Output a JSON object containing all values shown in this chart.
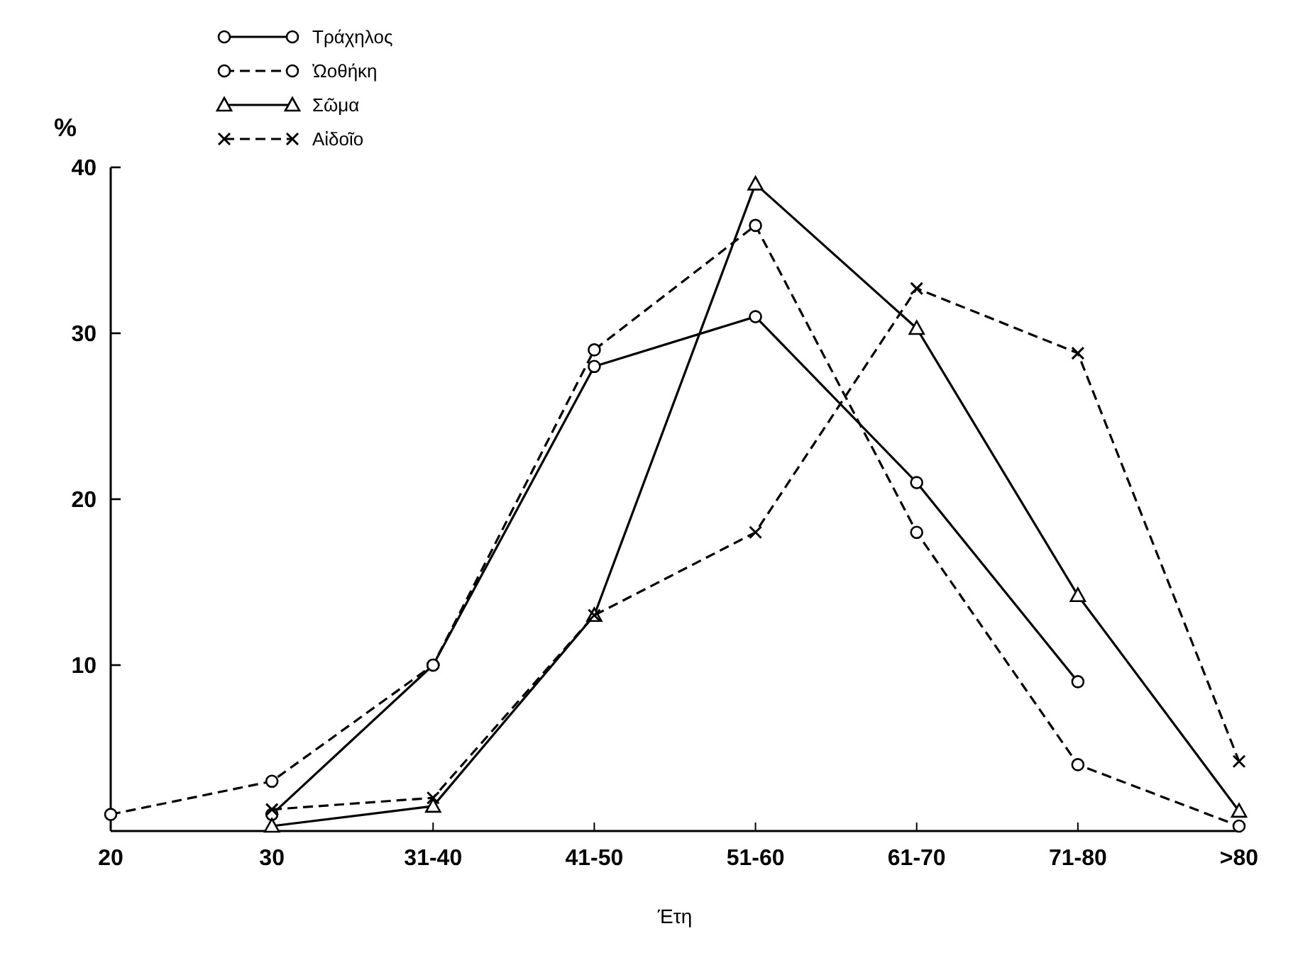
{
  "chart_data": {
    "type": "line",
    "ylabel": "%",
    "xlabel": "Έτη",
    "categories": [
      "20",
      "30",
      "31-40",
      "41-50",
      "51-60",
      "61-70",
      "71-80",
      ">80"
    ],
    "ylim": [
      0,
      40
    ],
    "yticks": [
      10,
      20,
      30,
      40
    ],
    "grid": false,
    "legend": "top left",
    "series": [
      {
        "name": "Τράχηλος",
        "color": "#000000",
        "marker": "circle",
        "line_style": "solid",
        "values": [
          null,
          1,
          10,
          28,
          31,
          21,
          9,
          null
        ]
      },
      {
        "name": "Ὠοθήκη",
        "color": "#000000",
        "marker": "circle",
        "line_style": "dashed",
        "values": [
          1,
          3,
          10,
          29,
          36.5,
          18,
          4,
          0.3
        ]
      },
      {
        "name": "Σῶμα",
        "color": "#000000",
        "marker": "triangle",
        "line_style": "solid",
        "values": [
          null,
          0.3,
          1.5,
          13,
          39,
          30.3,
          14.2,
          1.2
        ]
      },
      {
        "name": "Αἰδοῖο",
        "color": "#000000",
        "marker": "cross",
        "line_style": "dashed",
        "values": [
          null,
          1.3,
          2,
          13,
          18,
          32.7,
          28.8,
          4.2
        ]
      }
    ]
  }
}
